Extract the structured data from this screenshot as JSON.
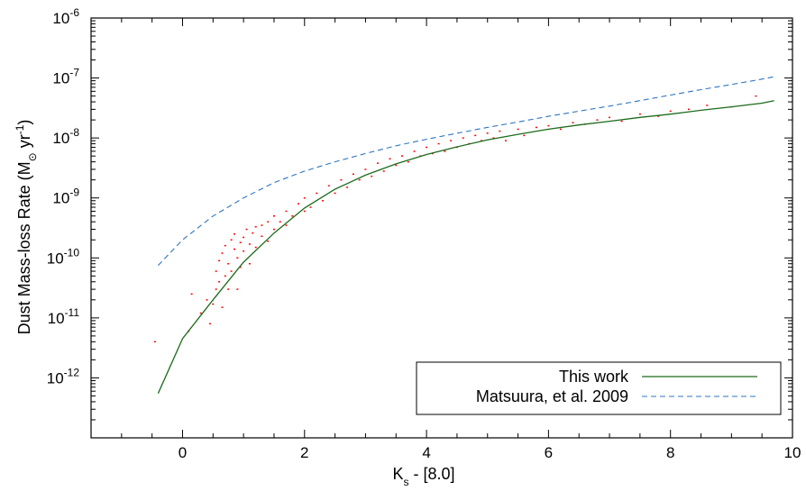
{
  "chart_data": {
    "type": "scatter",
    "title": "",
    "xlabel": {
      "main": "K",
      "sub": "s",
      "rest": " - [8.0]"
    },
    "ylabel": {
      "main": "Dust Mass-loss Rate (M",
      "sun": "⊙",
      "mid": " yr",
      "sup": "-1",
      "end": ")"
    },
    "x_range": [
      -1.5,
      10
    ],
    "y_range": [
      1e-13,
      1e-06
    ],
    "y_scale": "log",
    "x_ticks": [
      0,
      2,
      4,
      6,
      8,
      10
    ],
    "x_tick_labels": [
      "0",
      "2",
      "4",
      "6",
      "8",
      "10"
    ],
    "y_ticks": [
      {
        "value": 1e-06,
        "base": "10",
        "exp": "-6"
      },
      {
        "value": 1e-07,
        "base": "10",
        "exp": "-7"
      },
      {
        "value": 1e-08,
        "base": "10",
        "exp": "-8"
      },
      {
        "value": 1e-09,
        "base": "10",
        "exp": "-9"
      },
      {
        "value": 1e-10,
        "base": "10",
        "exp": "-10"
      },
      {
        "value": 1e-11,
        "base": "10",
        "exp": "-11"
      },
      {
        "value": 1e-12,
        "base": "10",
        "exp": "-12"
      }
    ],
    "grid": false,
    "legend_position": "bottom-right",
    "series": [
      {
        "name": "This work",
        "style": "solid-line",
        "color": "#1b6b1b",
        "x": [
          -0.4,
          0.0,
          0.5,
          1.0,
          1.5,
          2.0,
          2.5,
          3.0,
          3.5,
          4.0,
          4.5,
          5.0,
          5.5,
          6.0,
          6.5,
          7.0,
          7.5,
          8.0,
          8.5,
          9.0,
          9.5,
          9.7
        ],
        "y": [
          5.5e-13,
          4.5e-12,
          2e-11,
          8.5e-11,
          2.6e-10,
          6.8e-10,
          1.4e-09,
          2.4e-09,
          3.7e-09,
          5.3e-09,
          7.1e-09,
          9.3e-09,
          1.15e-08,
          1.4e-08,
          1.65e-08,
          1.9e-08,
          2.2e-08,
          2.5e-08,
          2.9e-08,
          3.3e-08,
          3.8e-08,
          4.2e-08
        ]
      },
      {
        "name": "Matsuura, et al. 2009",
        "style": "dashed-line",
        "color": "#2e74c0",
        "x": [
          -0.4,
          0.0,
          0.5,
          1.0,
          1.5,
          2.0,
          2.5,
          3.0,
          3.5,
          4.0,
          4.5,
          5.0,
          5.5,
          6.0,
          6.5,
          7.0,
          7.5,
          8.0,
          8.5,
          9.0,
          9.5,
          9.7
        ],
        "y": [
          7.5e-11,
          2e-10,
          5e-10,
          1e-09,
          1.8e-09,
          2.8e-09,
          4e-09,
          5.5e-09,
          7.4e-09,
          9.5e-09,
          1.2e-08,
          1.5e-08,
          1.85e-08,
          2.3e-08,
          2.8e-08,
          3.4e-08,
          4.2e-08,
          5.2e-08,
          6.4e-08,
          7.8e-08,
          9.6e-08,
          1.05e-07
        ]
      },
      {
        "name": "",
        "style": "points",
        "color": "#ff0000",
        "x": [
          -0.45,
          0.1,
          0.15,
          0.3,
          0.4,
          0.45,
          0.5,
          0.55,
          0.55,
          0.6,
          0.6,
          0.65,
          0.65,
          0.7,
          0.7,
          0.75,
          0.75,
          0.8,
          0.8,
          0.85,
          0.85,
          0.9,
          0.9,
          0.95,
          0.95,
          1.0,
          1.0,
          1.05,
          1.1,
          1.1,
          1.15,
          1.2,
          1.2,
          1.3,
          1.3,
          1.4,
          1.4,
          1.5,
          1.5,
          1.6,
          1.7,
          1.7,
          1.8,
          1.9,
          2.0,
          2.0,
          2.1,
          2.2,
          2.3,
          2.4,
          2.5,
          2.6,
          2.7,
          2.8,
          2.9,
          3.0,
          3.1,
          3.2,
          3.3,
          3.4,
          3.5,
          3.6,
          3.7,
          3.8,
          3.9,
          4.0,
          4.1,
          4.2,
          4.3,
          4.4,
          4.5,
          4.6,
          4.7,
          4.8,
          4.9,
          5.0,
          5.1,
          5.2,
          5.3,
          5.5,
          5.6,
          5.8,
          6.0,
          6.2,
          6.4,
          6.6,
          6.8,
          7.0,
          7.2,
          7.5,
          7.8,
          8.0,
          8.3,
          8.6,
          9.0,
          9.4
        ],
        "y": [
          4e-12,
          6e-12,
          2.5e-11,
          1.2e-11,
          2e-11,
          8e-12,
          1.7e-11,
          3e-11,
          6e-11,
          4e-11,
          9e-11,
          1.5e-11,
          1.2e-10,
          5e-11,
          1.6e-10,
          3e-11,
          8e-11,
          2e-10,
          6e-11,
          1.4e-10,
          2.5e-10,
          1e-10,
          3e-11,
          1.8e-10,
          7e-11,
          2.2e-10,
          1.3e-10,
          3e-10,
          1.7e-10,
          8e-11,
          2.6e-10,
          3.3e-10,
          1.5e-10,
          2.3e-10,
          3.5e-10,
          4e-10,
          1.9e-10,
          5e-10,
          3e-10,
          4e-10,
          6e-10,
          3.5e-10,
          5e-10,
          8e-10,
          1e-09,
          6e-10,
          7e-10,
          1.2e-09,
          9e-10,
          1.6e-09,
          1.2e-09,
          2e-09,
          1.5e-09,
          2.5e-09,
          2e-09,
          3e-09,
          2.3e-09,
          3.8e-09,
          2.8e-09,
          4.5e-09,
          3.5e-09,
          5e-09,
          4e-09,
          6e-09,
          5e-09,
          7e-09,
          5.5e-09,
          8e-09,
          6e-09,
          9e-09,
          7e-09,
          1e-08,
          8e-09,
          1.1e-08,
          9e-09,
          1.2e-08,
          1e-08,
          1.3e-08,
          9e-09,
          1.4e-08,
          1.1e-08,
          1.5e-08,
          1.6e-08,
          1.4e-08,
          1.8e-08,
          1.7e-08,
          2e-08,
          2.2e-08,
          1.9e-08,
          2.5e-08,
          2.3e-08,
          2.8e-08,
          3e-08,
          3.5e-08,
          3.3e-08,
          5e-08
        ]
      }
    ]
  }
}
